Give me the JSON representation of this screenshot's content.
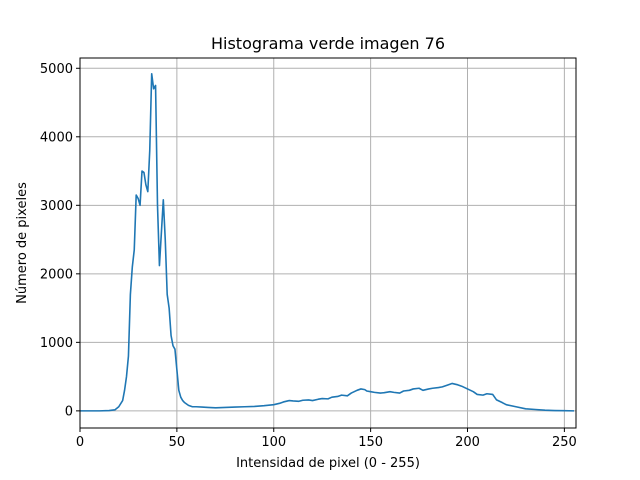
{
  "chart_data": {
    "type": "line",
    "title": "Histograma verde imagen 76",
    "xlabel": "Intensidad de pixel (0 - 255)",
    "ylabel": "Número de pixeles",
    "xlim": [
      0,
      256
    ],
    "ylim": [
      -250,
      5150
    ],
    "xticks": [
      0,
      50,
      100,
      150,
      200,
      250
    ],
    "yticks": [
      0,
      1000,
      2000,
      3000,
      4000,
      5000
    ],
    "grid": true,
    "series": [
      {
        "color": "#1f77b4",
        "x": [
          0,
          5,
          10,
          15,
          18,
          20,
          22,
          23,
          24,
          25,
          26,
          27,
          28,
          29,
          30,
          31,
          32,
          33,
          34,
          35,
          36,
          37,
          38,
          39,
          40,
          41,
          42,
          43,
          44,
          45,
          46,
          47,
          48,
          49,
          50,
          51,
          52,
          53,
          54,
          55,
          56,
          58,
          60,
          63,
          66,
          70,
          75,
          80,
          85,
          90,
          95,
          100,
          103,
          105,
          108,
          110,
          113,
          115,
          118,
          120,
          123,
          125,
          128,
          130,
          133,
          135,
          138,
          140,
          143,
          145,
          147,
          148,
          150,
          152,
          155,
          157,
          160,
          162,
          165,
          167,
          170,
          172,
          175,
          177,
          180,
          182,
          185,
          187,
          190,
          192,
          195,
          197,
          200,
          203,
          205,
          208,
          210,
          213,
          215,
          218,
          220,
          225,
          230,
          235,
          240,
          245,
          250,
          255
        ],
        "y": [
          0,
          0,
          0,
          5,
          15,
          60,
          150,
          300,
          500,
          800,
          1700,
          2100,
          2350,
          3150,
          3100,
          3000,
          3500,
          3480,
          3300,
          3200,
          3800,
          4920,
          4700,
          4750,
          3000,
          2120,
          2600,
          3080,
          2500,
          1700,
          1500,
          1100,
          950,
          900,
          600,
          300,
          200,
          150,
          120,
          100,
          80,
          60,
          60,
          55,
          50,
          45,
          50,
          55,
          60,
          65,
          75,
          90,
          110,
          130,
          150,
          145,
          140,
          155,
          160,
          150,
          170,
          180,
          175,
          200,
          210,
          230,
          220,
          260,
          300,
          320,
          310,
          290,
          280,
          270,
          260,
          265,
          280,
          270,
          260,
          290,
          300,
          320,
          330,
          300,
          320,
          330,
          340,
          350,
          380,
          400,
          380,
          360,
          320,
          280,
          240,
          230,
          250,
          240,
          160,
          120,
          90,
          60,
          30,
          20,
          10,
          5,
          2,
          0
        ]
      }
    ]
  }
}
